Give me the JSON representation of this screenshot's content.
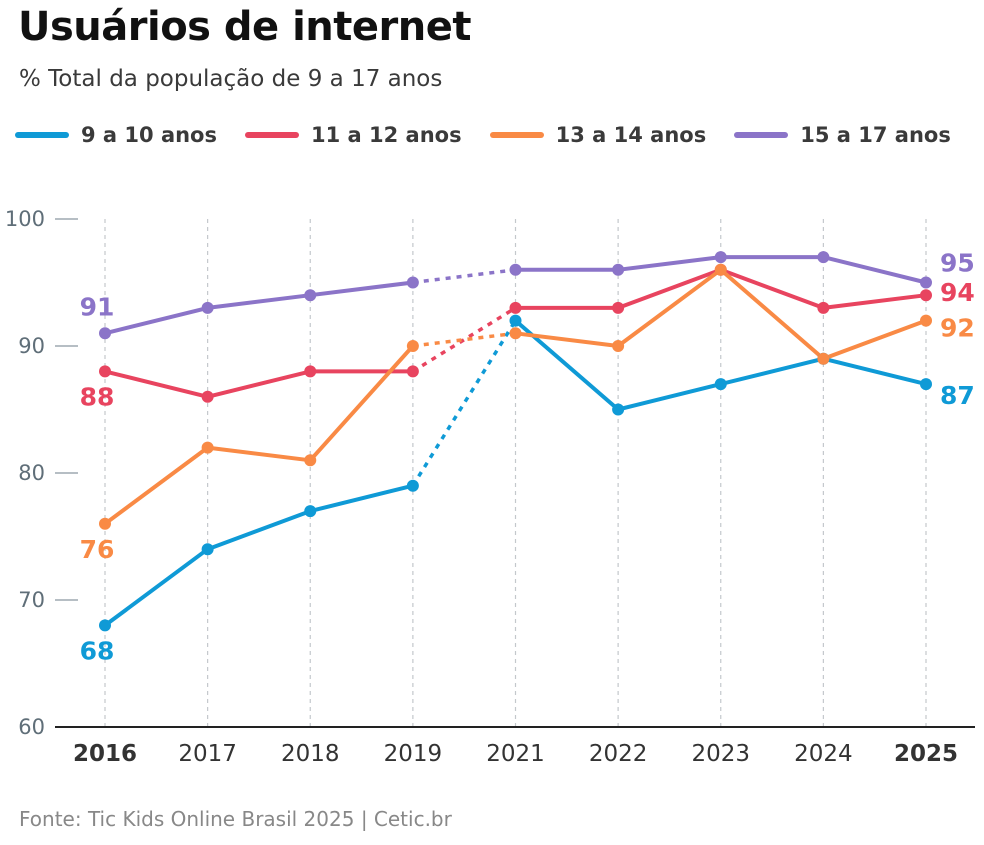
{
  "header": {
    "title": "Usuários de internet",
    "subtitle": "% Total da população de 9 a 17 anos"
  },
  "footer": {
    "source": "Fonte: Tic Kids Online Brasil 2025 | Cetic.br"
  },
  "chart_data": {
    "type": "line",
    "title": "Usuários de internet",
    "subtitle": "% Total da população de 9 a 17 anos",
    "xlabel": "",
    "ylabel": "",
    "categories": [
      "2016",
      "2017",
      "2018",
      "2019",
      "2021",
      "2022",
      "2023",
      "2024",
      "2025"
    ],
    "bold_categories": [
      "2016",
      "2025"
    ],
    "yticks": [
      60,
      70,
      80,
      90,
      100
    ],
    "ylim": [
      60,
      100
    ],
    "grid": "vertical dashed",
    "legend_position": "top",
    "dashed_segment": [
      "2019",
      "2021"
    ],
    "series": [
      {
        "name": "9 a 10 anos",
        "color": "#0f9ad6",
        "values": [
          68,
          74,
          77,
          79,
          92,
          85,
          87,
          89,
          87
        ],
        "start_label": "68",
        "end_label": "87"
      },
      {
        "name": "11 a 12 anos",
        "color": "#e8445f",
        "values": [
          88,
          86,
          88,
          88,
          93,
          93,
          96,
          93,
          94
        ],
        "start_label": "88",
        "end_label": "94"
      },
      {
        "name": "13 a 14 anos",
        "color": "#f98a45",
        "values": [
          76,
          82,
          81,
          90,
          91,
          90,
          96,
          89,
          92
        ],
        "start_label": "76",
        "end_label": "92"
      },
      {
        "name": "15 a 17 anos",
        "color": "#8b74c8",
        "values": [
          91,
          93,
          94,
          95,
          96,
          96,
          97,
          97,
          95
        ],
        "start_label": "91",
        "end_label": "95"
      }
    ]
  }
}
